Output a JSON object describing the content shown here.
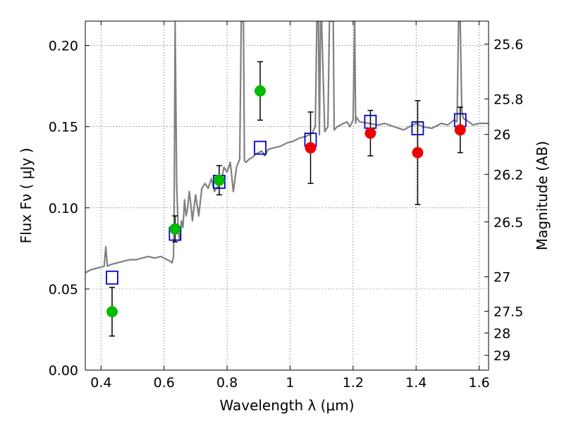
{
  "chart_data": {
    "type": "scatter",
    "xlabel": "Wavelength  λ (μm)",
    "ylabel": "Flux  Fν  ( μJy )",
    "right_ylabel": "Magnitude (AB)",
    "xlim": [
      0.35,
      1.63
    ],
    "ylim": [
      0.0,
      0.215
    ],
    "grid": true,
    "grid_style": "dotted",
    "x_ticks": [
      0.4,
      0.6,
      0.8,
      1.0,
      1.2,
      1.4,
      1.6
    ],
    "x_tick_labels": [
      "0.4",
      "0.6",
      "0.8",
      "1",
      "1.2",
      "1.4",
      "1.6"
    ],
    "y_ticks": [
      0.0,
      0.05,
      0.1,
      0.15,
      0.2
    ],
    "y_tick_labels": [
      "0.00",
      "0.05",
      "0.10",
      "0.15",
      "0.20"
    ],
    "right_y_ticks": [
      {
        "flux": 0.2009,
        "label": "25.6"
      },
      {
        "flux": 0.1671,
        "label": "25.8"
      },
      {
        "flux": 0.1452,
        "label": "26"
      },
      {
        "flux": 0.1206,
        "label": "26.2"
      },
      {
        "flux": 0.0913,
        "label": "26.5"
      },
      {
        "flux": 0.0575,
        "label": "27"
      },
      {
        "flux": 0.0363,
        "label": "27.5"
      },
      {
        "flux": 0.0229,
        "label": "28"
      },
      {
        "flux": 0.0091,
        "label": "29"
      }
    ],
    "colors": {
      "spectrum": "#808080",
      "model_squares": "#0000cc",
      "green_points": "#00bb00",
      "red_points": "#ee0000",
      "error_bars": "#000000"
    },
    "series": [
      {
        "kind": "spectrum",
        "x": [
          0.35,
          0.37,
          0.39,
          0.41,
          0.415,
          0.42,
          0.43,
          0.45,
          0.47,
          0.49,
          0.51,
          0.53,
          0.55,
          0.57,
          0.59,
          0.61,
          0.62,
          0.625,
          0.63,
          0.632,
          0.635,
          0.64,
          0.645,
          0.65,
          0.655,
          0.66,
          0.665,
          0.67,
          0.675,
          0.68,
          0.685,
          0.69,
          0.7,
          0.71,
          0.72,
          0.73,
          0.74,
          0.75,
          0.76,
          0.77,
          0.78,
          0.79,
          0.8,
          0.81,
          0.82,
          0.83,
          0.84,
          0.845,
          0.85,
          0.852,
          0.855,
          0.86,
          0.87,
          0.88,
          0.89,
          0.9,
          0.91,
          0.92,
          0.93,
          0.95,
          0.97,
          0.99,
          1.01,
          1.03,
          1.05,
          1.07,
          1.08,
          1.085,
          1.09,
          1.093,
          1.097,
          1.1,
          1.11,
          1.12,
          1.125,
          1.13,
          1.133,
          1.137,
          1.14,
          1.15,
          1.16,
          1.17,
          1.18,
          1.19,
          1.2,
          1.205,
          1.208,
          1.21,
          1.22,
          1.25,
          1.28,
          1.3,
          1.33,
          1.36,
          1.4,
          1.42,
          1.45,
          1.48,
          1.5,
          1.52,
          1.53,
          1.535,
          1.54,
          1.545,
          1.55,
          1.56,
          1.58,
          1.6,
          1.63
        ],
        "y": [
          0.06,
          0.062,
          0.063,
          0.064,
          0.076,
          0.064,
          0.065,
          0.066,
          0.067,
          0.068,
          0.068,
          0.069,
          0.07,
          0.069,
          0.07,
          0.068,
          0.067,
          0.066,
          0.07,
          0.095,
          0.215,
          0.115,
          0.085,
          0.08,
          0.092,
          0.088,
          0.105,
          0.095,
          0.1,
          0.11,
          0.102,
          0.092,
          0.108,
          0.095,
          0.112,
          0.115,
          0.112,
          0.118,
          0.11,
          0.113,
          0.115,
          0.125,
          0.122,
          0.128,
          0.11,
          0.125,
          0.13,
          0.215,
          0.215,
          0.215,
          0.129,
          0.128,
          0.13,
          0.131,
          0.133,
          0.134,
          0.135,
          0.132,
          0.136,
          0.137,
          0.138,
          0.14,
          0.141,
          0.143,
          0.144,
          0.146,
          0.15,
          0.215,
          0.215,
          0.145,
          0.215,
          0.215,
          0.147,
          0.15,
          0.215,
          0.215,
          0.215,
          0.215,
          0.148,
          0.15,
          0.151,
          0.152,
          0.153,
          0.15,
          0.154,
          0.215,
          0.152,
          0.156,
          0.153,
          0.152,
          0.151,
          0.152,
          0.15,
          0.148,
          0.152,
          0.15,
          0.149,
          0.152,
          0.151,
          0.154,
          0.153,
          0.215,
          0.215,
          0.16,
          0.155,
          0.154,
          0.151,
          0.152,
          0.152
        ]
      },
      {
        "kind": "model",
        "marker": "open-square",
        "x": [
          0.435,
          0.635,
          0.775,
          0.905,
          1.065,
          1.255,
          1.405,
          1.54
        ],
        "y": [
          0.057,
          0.084,
          0.116,
          0.137,
          0.142,
          0.153,
          0.149,
          0.154
        ]
      },
      {
        "kind": "observed",
        "marker": "filled-circle",
        "color": "green",
        "x": [
          0.435,
          0.635,
          0.775,
          0.905
        ],
        "y": [
          0.036,
          0.087,
          0.117,
          0.172
        ],
        "yerr": [
          0.015,
          0.008,
          0.009,
          0.018
        ]
      },
      {
        "kind": "observed",
        "marker": "filled-circle",
        "color": "red",
        "x": [
          1.065,
          1.255,
          1.405,
          1.54
        ],
        "y": [
          0.137,
          0.146,
          0.134,
          0.148
        ],
        "yerr": [
          0.022,
          0.014,
          0.032,
          0.014
        ]
      }
    ]
  }
}
